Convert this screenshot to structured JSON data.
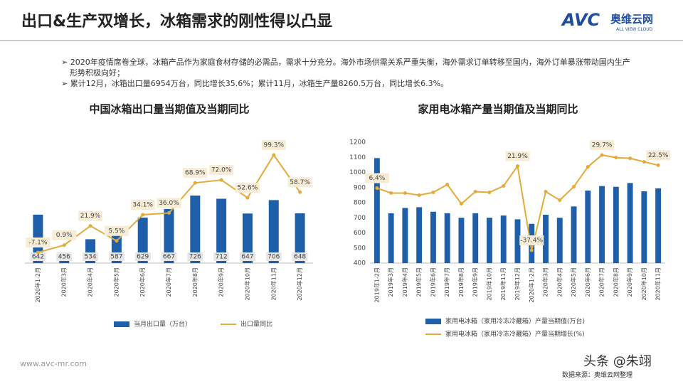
{
  "header": {
    "title": "出口&生产双增长，冰箱需求的刚性得以凸显",
    "logo": "AVC",
    "logo_cn": "奥维云网",
    "logo_en": "ALL VIEW CLOUD"
  },
  "bullets": [
    "2020年疫情席卷全球，冰箱产品作为家庭食材存储的必需品，需求十分充分。海外市场供需关系严重失衡，海外需求订单转移至国内，海外订单暴涨带动国内生产形势积极向好；",
    "累计12月，冰箱出口量6954万台，同比增长35.6%；累计11月，冰箱生产量8260.5万台，同比增长6.3%。"
  ],
  "chart_data": [
    {
      "type": "combo",
      "title": "中国冰箱出口量当期值及当期同比",
      "data_labels": true,
      "categories": [
        "2020年1-2月",
        "2020年3月",
        "2020年4月",
        "2020年5月",
        "2020年6月",
        "2020年7月",
        "2020年8月",
        "2020年9月",
        "2020年10月",
        "2020年11月",
        "2020年12月"
      ],
      "series": [
        {
          "name": "当月出口量（万台）",
          "color": "#1f5ea8",
          "values": [
            642,
            456,
            534,
            587,
            629,
            667,
            726,
            712,
            647,
            706,
            648
          ]
        },
        {
          "name": "出口量同比",
          "color": "#e4aa3a",
          "axis": "y2",
          "values": [
            -7.1,
            0.9,
            21.9,
            5.5,
            34.1,
            36.0,
            68.9,
            72.0,
            52.6,
            99.3,
            58.7
          ],
          "value_labels": [
            "-7.1%",
            "0.9%",
            "21.9%",
            "5.5%",
            "34.1%",
            "36.0%",
            "68.9%",
            "72.0%",
            "52.6%",
            "99.3%",
            "58.7%"
          ]
        }
      ]
    },
    {
      "type": "combo",
      "title": "家用电冰箱产量当期值及当期同比",
      "categories": [
        "2019年1-2月",
        "2019年3月",
        "2019年4月",
        "2019年5月",
        "2019年6月",
        "2019年7月",
        "2019年8月",
        "2019年9月",
        "2019年10月",
        "2019年11月",
        "2019年12月",
        "2020年1-2月",
        "2020年3月",
        "2020年4月",
        "2020年5月",
        "2020年6月",
        "2020年7月",
        "2020年8月",
        "2020年9月",
        "2020年10月",
        "2020年11月"
      ],
      "ylim": [
        400,
        1200
      ],
      "yticks": [
        400,
        500,
        600,
        700,
        800,
        900,
        1000,
        1100,
        1200
      ],
      "series": [
        {
          "name": "家用电冰箱（家用冷冻冷藏箱）产量当期值(万台)",
          "color": "#1f5ea8",
          "values": [
            1095,
            730,
            765,
            770,
            740,
            730,
            700,
            730,
            700,
            715,
            690,
            660,
            720,
            700,
            775,
            880,
            910,
            905,
            930,
            875,
            895
          ]
        },
        {
          "name": "家用电冰箱（家用冷冻冷藏箱）产量当期增长(%)",
          "color": "#e4aa3a",
          "axis": "y2",
          "values": [
            6.4,
            2.9,
            2.9,
            1.4,
            3.4,
            8.9,
            -4.6,
            3.9,
            3.4,
            7.9,
            21.9,
            -37.4,
            3.9,
            -2.1,
            7.4,
            21.4,
            29.7,
            27.9,
            27.4,
            24.9,
            22.5
          ],
          "value_labels": [
            "6.4%",
            null,
            null,
            null,
            null,
            null,
            null,
            null,
            null,
            null,
            "21.9%",
            "-37.4%",
            null,
            null,
            null,
            null,
            "29.7%",
            null,
            null,
            null,
            "22.5%"
          ]
        }
      ]
    }
  ],
  "footer": {
    "site": "www.avc-mr.com",
    "source": "数据来源：奥维云网整理",
    "watermark": "头条 @朱翊"
  }
}
